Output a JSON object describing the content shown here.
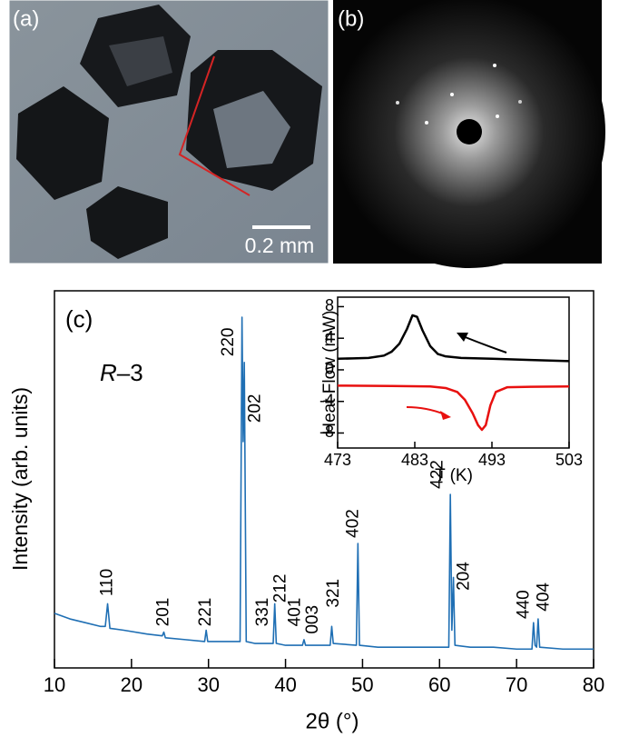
{
  "panels": {
    "a": "(a)",
    "b": "(b)",
    "scale_bar": "0.2 mm"
  },
  "chart_data": [
    {
      "type": "line",
      "panel_label": "(c)",
      "x_label": "2θ (°)",
      "y_label": "Intensity (arb. units)",
      "space_group": {
        "italic": "R",
        "rest": "–3"
      },
      "xlim": [
        10,
        80
      ],
      "xticks": [
        10,
        20,
        30,
        40,
        50,
        60,
        70,
        80
      ],
      "ylim": [
        0,
        100
      ],
      "series": [
        {
          "color": "#1f6fb4",
          "x": [
            10,
            12,
            14,
            16,
            16.6,
            16.9,
            17.2,
            19,
            22,
            24.0,
            24.2,
            24.4,
            27,
            29.5,
            29.7,
            29.9,
            32,
            34.1,
            34.35,
            34.5,
            34.65,
            34.9,
            36,
            38.4,
            38.6,
            38.8,
            40,
            42.2,
            42.4,
            42.6,
            45.8,
            46.0,
            46.2,
            49.2,
            49.4,
            49.6,
            52,
            55,
            58,
            61.2,
            61.4,
            61.6,
            61.8,
            62.0,
            64,
            67,
            70,
            72.0,
            72.2,
            72.4,
            72.6,
            72.8,
            73.0,
            76,
            80
          ],
          "values": [
            14.5,
            13,
            12,
            11,
            11,
            17,
            10.5,
            10,
            9,
            8.5,
            9.5,
            8,
            7.5,
            7,
            10,
            7,
            7,
            7,
            93,
            60,
            81,
            7,
            6.5,
            6.5,
            17,
            6.5,
            6,
            6,
            7.5,
            6,
            6,
            11,
            6.5,
            6,
            33,
            6,
            5.5,
            5.5,
            5.5,
            5.5,
            46,
            10,
            24,
            6,
            5.5,
            5.5,
            5,
            5,
            12,
            6,
            5.5,
            13,
            5.5,
            5,
            5
          ]
        }
      ],
      "annotations": [
        {
          "text": "110",
          "x": 16.9,
          "y": 19
        },
        {
          "text": "201",
          "x": 24.2,
          "y": 11
        },
        {
          "text": "221",
          "x": 29.7,
          "y": 11
        },
        {
          "text": "220",
          "x": 32.6,
          "y": 82.6
        },
        {
          "text": "202",
          "x": 36.1,
          "y": 65
        },
        {
          "text": "331",
          "x": 37.1,
          "y": 11
        },
        {
          "text": "212",
          "x": 39.4,
          "y": 17.3
        },
        {
          "text": "401",
          "x": 41.3,
          "y": 11
        },
        {
          "text": "003",
          "x": 43.6,
          "y": 9
        },
        {
          "text": "321",
          "x": 46.3,
          "y": 16
        },
        {
          "text": "402",
          "x": 48.8,
          "y": 34.5
        },
        {
          "text": "422",
          "x": 59.8,
          "y": 47.5
        },
        {
          "text": "204",
          "x": 63.2,
          "y": 20.5
        },
        {
          "text": "440",
          "x": 71,
          "y": 13
        },
        {
          "text": "404",
          "x": 73.6,
          "y": 15
        }
      ]
    },
    {
      "type": "line",
      "x_label": "T (K)",
      "y_label": "Heat Flow (mW)",
      "xlim": [
        473,
        503
      ],
      "xticks": [
        473,
        483,
        493,
        503
      ],
      "ylim": [
        -9.9,
        9.2
      ],
      "yticks": [
        -8,
        -4,
        0,
        4,
        8
      ],
      "series": [
        {
          "color": "#000000",
          "x": [
            473,
            475,
            477,
            479,
            480,
            481,
            482,
            482.7,
            483.3,
            484,
            485,
            486,
            487,
            489,
            493,
            498,
            503
          ],
          "values": [
            1.4,
            1.45,
            1.5,
            1.8,
            2.3,
            3.3,
            5.2,
            6.9,
            6.7,
            5.0,
            3.0,
            2.0,
            1.7,
            1.5,
            1.4,
            1.25,
            1.1
          ]
        },
        {
          "color": "#e8100f",
          "x": [
            473,
            480,
            485,
            487,
            488.5,
            489.5,
            490.5,
            491.2,
            491.7,
            492.2,
            492.8,
            493.5,
            495,
            498,
            503
          ],
          "values": [
            -2.0,
            -2.05,
            -2.1,
            -2.3,
            -2.8,
            -3.8,
            -5.5,
            -7.0,
            -7.6,
            -7.0,
            -4.5,
            -2.8,
            -2.2,
            -2.15,
            -2.1
          ]
        }
      ]
    }
  ]
}
